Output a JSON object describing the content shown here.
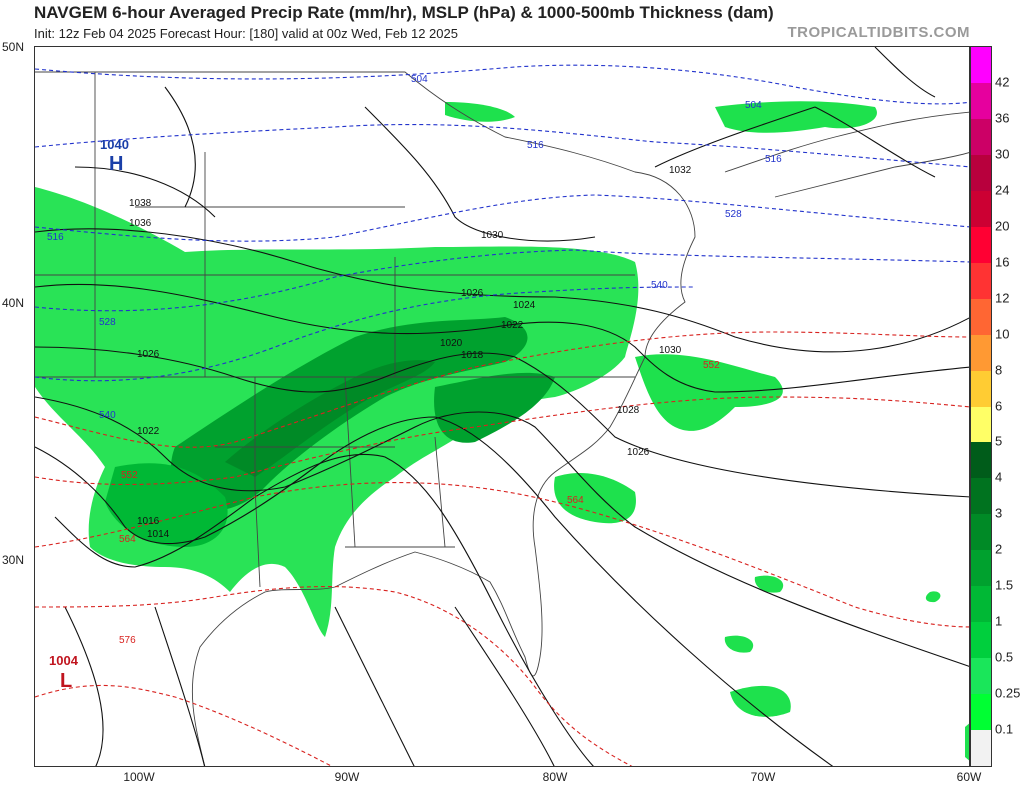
{
  "header": {
    "title": "NAVGEM 6-hour Averaged Precip Rate (mm/hr), MSLP (hPa) & 1000-500mb Thickness (dam)",
    "subtitle": "Init: 12z Feb 04 2025   Forecast Hour: [180]   valid at 00z Wed, Feb 12 2025",
    "brand": "TROPICALTIDBITS.COM"
  },
  "axes": {
    "lat_labels": [
      "50N",
      "40N",
      "30N"
    ],
    "lon_labels": [
      "100W",
      "90W",
      "80W",
      "70W",
      "60W"
    ]
  },
  "pressure_centers": [
    {
      "type": "H",
      "value": "1040",
      "color": "#1a3fa8"
    },
    {
      "type": "L",
      "value": "1004",
      "color": "#c0141e"
    }
  ],
  "isobar_labels": [
    "1038",
    "1036",
    "1032",
    "1030",
    "1026",
    "1024",
    "1022",
    "1020",
    "1018",
    "1030",
    "1028",
    "1026",
    "1026",
    "1022",
    "1016",
    "1014"
  ],
  "thickness_labels_blue": [
    "504",
    "504",
    "516",
    "516",
    "516",
    "528",
    "528",
    "540",
    "540"
  ],
  "thickness_labels_red": [
    "552",
    "552",
    "564",
    "564",
    "576"
  ],
  "colorbar": {
    "labels": [
      "42",
      "36",
      "30",
      "24",
      "20",
      "16",
      "12",
      "10",
      "8",
      "6",
      "5",
      "4",
      "3",
      "2",
      "1.5",
      "1",
      "0.5",
      "0.25",
      "0.1"
    ],
    "colors": [
      "#ff00ff",
      "#e6009e",
      "#cc0066",
      "#b8003d",
      "#cc0033",
      "#ff0033",
      "#ff3333",
      "#ff6633",
      "#ff9933",
      "#ffcc33",
      "#ffff66",
      "#005c1a",
      "#00731f",
      "#008a26",
      "#00a12e",
      "#00b835",
      "#00cf3d",
      "#1ae65a",
      "#00ff33",
      "#f2f2f2"
    ]
  }
}
